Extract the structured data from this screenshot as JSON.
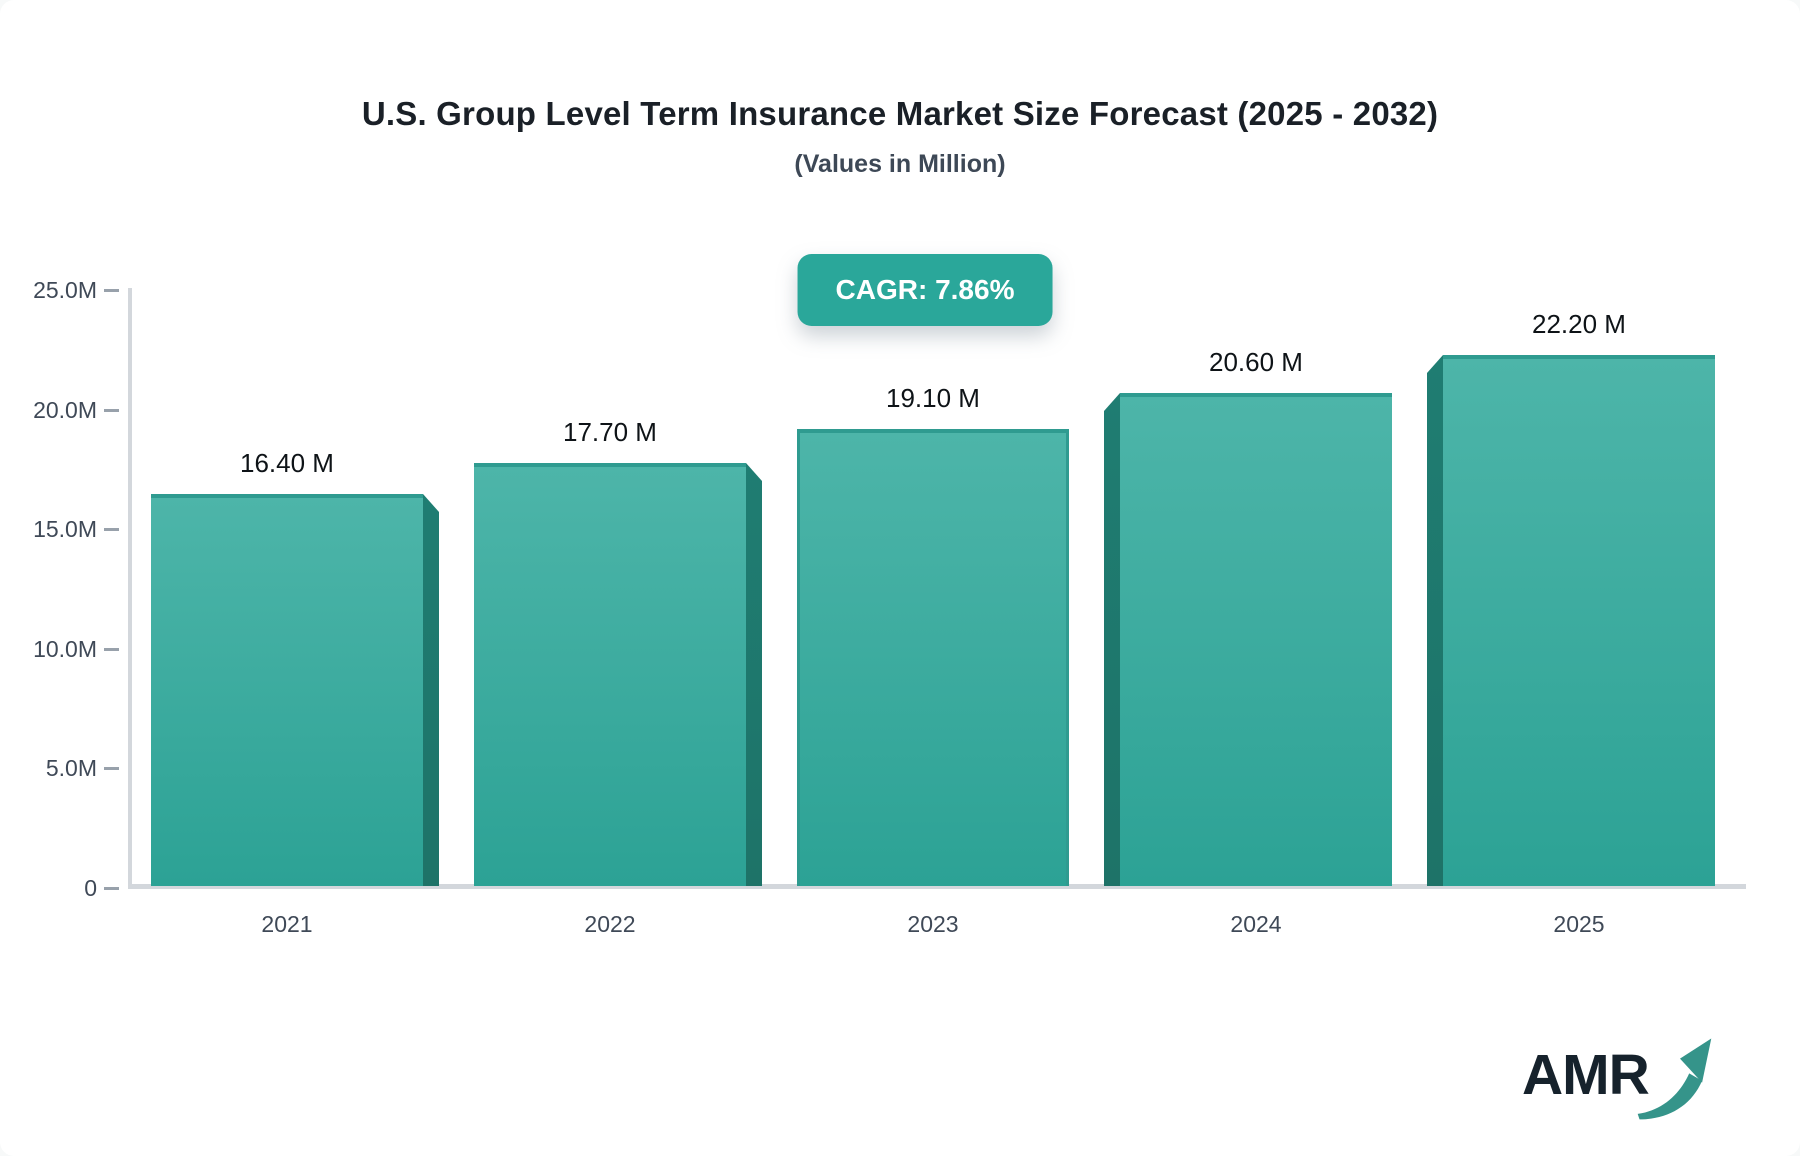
{
  "header": {
    "title": "U.S. Group Level Term Insurance Market Size Forecast (2025 - 2032)",
    "subtitle": "(Values in Million)",
    "cagr_badge": "CAGR: 7.86%"
  },
  "chart_data": {
    "type": "bar",
    "title": "U.S. Group Level Term Insurance Market Size Forecast (2025 - 2032)",
    "subtitle": "(Values in Million)",
    "categories": [
      "2021",
      "2022",
      "2023",
      "2024",
      "2025"
    ],
    "values": [
      16.4,
      17.7,
      19.1,
      20.6,
      22.2
    ],
    "bar_labels": [
      "16.40 M",
      "17.70 M",
      "19.10 M",
      "20.60 M",
      "22.20 M"
    ],
    "unit": "Million",
    "cagr": "7.86%",
    "xlabel": "",
    "ylabel": "",
    "ylim": [
      0,
      25
    ],
    "yticks": [
      {
        "value": 0,
        "label": "0"
      },
      {
        "value": 5,
        "label": "5.0M"
      },
      {
        "value": 10,
        "label": "10.0M"
      },
      {
        "value": 15,
        "label": "15.0M"
      },
      {
        "value": 20,
        "label": "20.0M"
      },
      {
        "value": 25,
        "label": "25.0M"
      }
    ],
    "grid": false,
    "legend": "none"
  },
  "colors": {
    "badge_bg": "#2aa79a",
    "bar_face_top": "#4db5a9",
    "bar_face_bottom": "#2ca295",
    "bar_side": "#1f7d72",
    "bar_edge": "#2f9b90",
    "axis_line": "#d3d7dc",
    "tick_mark": "#98a1ab",
    "title_text": "#1a2027",
    "subtitle_text": "#3d4856",
    "axis_text": "#3f4957",
    "value_text": "#0e1317",
    "logo_text": "#16222c",
    "logo_arrow": "#35948a"
  },
  "logo": {
    "text": "AMR"
  }
}
